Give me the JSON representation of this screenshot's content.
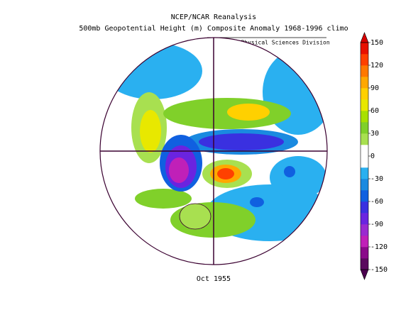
{
  "title": [
    "NCEP/NCAR Reanalysis",
    "500mb Geopotential Height (m) Composite Anomaly 1968-1996 climo"
  ],
  "credit": "NOAA/ESRL Physical Sciences Division",
  "date": "Oct 1955",
  "colorbar": {
    "lim": [
      -150,
      150
    ],
    "ticks": [
      -150,
      -120,
      -90,
      -60,
      -30,
      0,
      30,
      60,
      90,
      120,
      150
    ],
    "colors": [
      "#5a0a5e",
      "#8a0a8a",
      "#c020b8",
      "#9a2ad0",
      "#6a24e0",
      "#3a30e0",
      "#1060e0",
      "#1a8ae0",
      "#2ab0f0",
      "#ffffff",
      "#ffffff",
      "#a8e050",
      "#80d02a",
      "#a8e000",
      "#e8e800",
      "#ffd000",
      "#ffa800",
      "#ff7800",
      "#ff4000",
      "#e81000"
    ],
    "under_color": "#4a004e",
    "over_color": "#d80000"
  }
}
